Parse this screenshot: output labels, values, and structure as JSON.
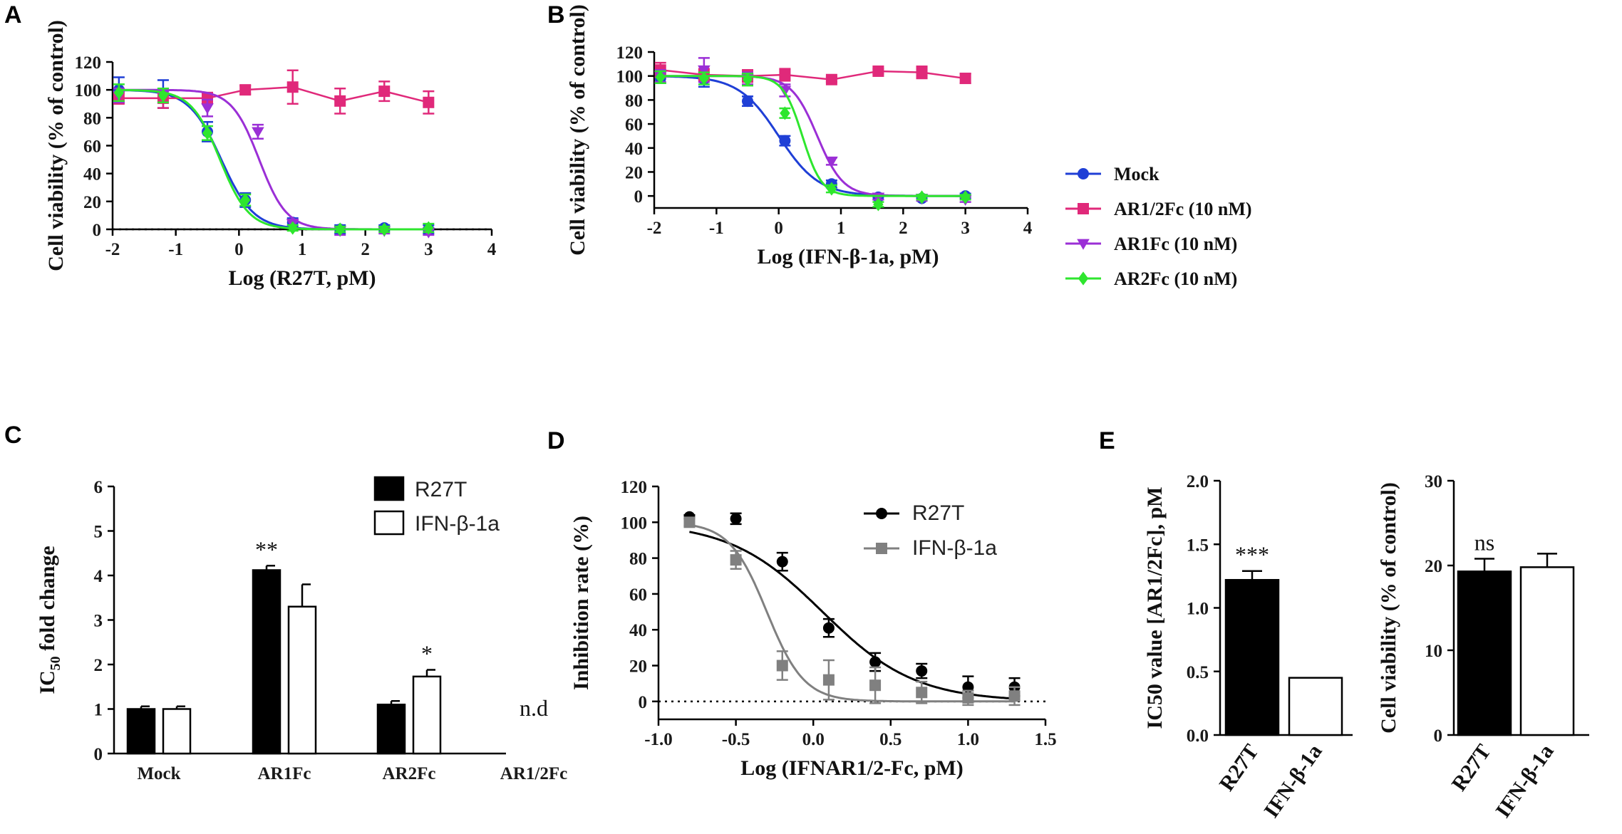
{
  "panels": {
    "A": "A",
    "B": "B",
    "C": "C",
    "D": "D",
    "E": "E"
  },
  "chart_data": [
    {
      "id": "A",
      "type": "scatter",
      "xlabel": "Log (R27T, pM)",
      "ylabel": "Cell viability (% of control)",
      "xlim": [
        -2,
        4
      ],
      "ylim": [
        0,
        120
      ],
      "xticks": [
        "-2",
        "-1",
        "0",
        "1",
        "2",
        "3",
        "4"
      ],
      "yticks": [
        "0",
        "20",
        "40",
        "60",
        "80",
        "100",
        "120"
      ],
      "zero_line": true,
      "series": [
        {
          "name": "Mock",
          "color": "#1f3fd6",
          "marker": "circle",
          "x": [
            -1.9,
            -1.2,
            -0.5,
            0.1,
            0.85,
            1.6,
            2.3,
            3.0
          ],
          "y": [
            100,
            97,
            70,
            21,
            5,
            0,
            1,
            0
          ],
          "err": [
            9,
            10,
            7,
            5,
            3,
            3,
            2,
            3
          ],
          "fit": {
            "top": 100,
            "bottom": 0,
            "ec50": -0.28,
            "hill": 1.7
          }
        },
        {
          "name": "AR1/2Fc (10 nM)",
          "color": "#e0297a",
          "marker": "square",
          "x": [
            -1.9,
            -1.2,
            -0.5,
            0.1,
            0.85,
            1.6,
            2.3,
            3.0
          ],
          "y": [
            94,
            94,
            94,
            100,
            102,
            92,
            99,
            91
          ],
          "err": [
            4,
            7,
            4,
            3,
            12,
            9,
            7,
            8
          ],
          "connect": true
        },
        {
          "name": "AR1Fc (10 nM)",
          "color": "#9b2fd6",
          "marker": "triangle",
          "x": [
            -1.9,
            -1.2,
            -0.5,
            0.3,
            0.85,
            1.6,
            2.3,
            3.0
          ],
          "y": [
            96,
            96,
            87,
            70,
            4,
            -1,
            -1,
            -2
          ],
          "err": [
            5,
            5,
            6,
            5,
            3,
            3,
            2,
            2
          ],
          "fit": {
            "top": 100,
            "bottom": 0,
            "ec50": 0.32,
            "hill": 2.0
          }
        },
        {
          "name": "AR2Fc (10 nM)",
          "color": "#2ee62e",
          "marker": "diamond",
          "x": [
            -1.9,
            -1.2,
            -0.5,
            0.1,
            0.85,
            1.6,
            2.3,
            3.0
          ],
          "y": [
            98,
            96,
            69,
            21,
            1,
            0,
            0,
            1
          ],
          "err": [
            6,
            5,
            5,
            4,
            2,
            2,
            2,
            3
          ],
          "fit": {
            "top": 100,
            "bottom": 0,
            "ec50": -0.3,
            "hill": 1.9
          }
        }
      ]
    },
    {
      "id": "B",
      "type": "scatter",
      "xlabel": "Log (IFN-β-1a, pM)",
      "ylabel": "Cell viability (% of control)",
      "xlim": [
        -2,
        4
      ],
      "ylim": [
        -10,
        120
      ],
      "xticks": [
        "-2",
        "-1",
        "0",
        "1",
        "2",
        "3",
        "4"
      ],
      "yticks": [
        "0",
        "20",
        "40",
        "60",
        "80",
        "100",
        "120"
      ],
      "legend": [
        "Mock",
        "AR1/2Fc (10 nM)",
        "AR1Fc (10 nM)",
        "AR2Fc (10 nM)"
      ],
      "series": [
        {
          "name": "Mock",
          "color": "#1f3fd6",
          "marker": "circle",
          "x": [
            -1.9,
            -1.2,
            -0.5,
            0.1,
            0.85,
            1.6,
            2.3,
            3.0
          ],
          "y": [
            98,
            97,
            79,
            46,
            10,
            -1,
            -2,
            0
          ],
          "err": [
            4,
            6,
            4,
            4,
            3,
            2,
            2,
            2
          ],
          "fit": {
            "top": 100,
            "bottom": 0,
            "ec50": 0.0,
            "hill": 1.35
          }
        },
        {
          "name": "AR1/2Fc (10 nM)",
          "color": "#e0297a",
          "marker": "square",
          "x": [
            -1.9,
            -1.2,
            -0.5,
            0.1,
            0.85,
            1.6,
            2.3,
            3.0
          ],
          "y": [
            105,
            101,
            100,
            101,
            97,
            104,
            103,
            98
          ],
          "err": [
            6,
            5,
            5,
            5,
            2,
            2,
            5,
            4
          ],
          "connect": true
        },
        {
          "name": "AR1Fc (10 nM)",
          "color": "#9b2fd6",
          "marker": "triangle",
          "x": [
            -1.9,
            -1.2,
            -0.5,
            0.1,
            0.85,
            1.6,
            2.3,
            3.0
          ],
          "y": [
            100,
            105,
            98,
            88,
            29,
            -1,
            -2,
            -3
          ],
          "err": [
            5,
            10,
            5,
            5,
            3,
            2,
            2,
            2
          ],
          "fit": {
            "top": 100,
            "bottom": 0,
            "ec50": 0.62,
            "hill": 2.1
          }
        },
        {
          "name": "AR2Fc (10 nM)",
          "color": "#2ee62e",
          "marker": "diamond",
          "x": [
            -1.9,
            -1.2,
            -0.5,
            0.1,
            0.85,
            1.6,
            2.3,
            3.0
          ],
          "y": [
            99,
            98,
            97,
            69,
            6,
            -7,
            -1,
            -1
          ],
          "err": [
            5,
            5,
            5,
            4,
            3,
            2,
            2,
            2
          ],
          "fit": {
            "top": 100,
            "bottom": 0,
            "ec50": 0.38,
            "hill": 2.8
          }
        }
      ]
    },
    {
      "id": "C",
      "type": "bar",
      "ylabel_main": "IC",
      "ylabel_sub": "50",
      "ylabel_rest": " fold change",
      "ylim": [
        0,
        6
      ],
      "yticks": [
        "0",
        "1",
        "2",
        "3",
        "4",
        "5",
        "6"
      ],
      "categories": [
        "Mock",
        "AR1Fc",
        "AR2Fc",
        "AR1/2Fc"
      ],
      "series": [
        {
          "name": "R27T",
          "fill": "#000000",
          "values": [
            1.0,
            4.12,
            1.1,
            null
          ],
          "err": [
            0.06,
            0.1,
            0.08,
            0
          ]
        },
        {
          "name": "IFN-β-1a",
          "fill": "#ffffff",
          "values": [
            1.0,
            3.3,
            1.73,
            null
          ],
          "err": [
            0.06,
            0.5,
            0.15,
            0
          ]
        }
      ],
      "annotations": [
        {
          "category": "AR1Fc",
          "series": 0,
          "text": "**"
        },
        {
          "category": "AR2Fc",
          "series": 1,
          "text": "*"
        },
        {
          "category": "AR1/2Fc",
          "series": -1,
          "text": "n.d"
        }
      ],
      "legend": [
        "R27T",
        "IFN-β-1a"
      ]
    },
    {
      "id": "D",
      "type": "scatter",
      "xlabel": "Log (IFNAR1/2-Fc, pM)",
      "ylabel": "Inhibition rate (%)",
      "xlim": [
        -1.0,
        1.5
      ],
      "ylim": [
        -10,
        120
      ],
      "xticks": [
        "-1.0",
        "-0.5",
        "0.0",
        "0.5",
        "1.0",
        "1.5"
      ],
      "yticks": [
        "0",
        "20",
        "40",
        "60",
        "80",
        "100",
        "120"
      ],
      "zero_line": true,
      "legend": [
        "R27T",
        "IFN-β-1a"
      ],
      "series": [
        {
          "name": "R27T",
          "color": "#000000",
          "marker": "circle",
          "x": [
            -0.8,
            -0.5,
            -0.2,
            0.1,
            0.4,
            0.7,
            1.0,
            1.3
          ],
          "y": [
            103,
            102,
            78,
            41,
            22,
            17,
            8,
            8
          ],
          "err": [
            1,
            3,
            5,
            5,
            5,
            4,
            6,
            5
          ],
          "fit": {
            "top": 100,
            "bottom": 0,
            "ec50": 0.06,
            "hill": 1.45
          }
        },
        {
          "name": "IFN-β-1a",
          "color": "#808080",
          "marker": "square",
          "x": [
            -0.8,
            -0.5,
            -0.2,
            0.1,
            0.4,
            0.7,
            1.0,
            1.3
          ],
          "y": [
            100,
            79,
            20,
            12,
            9,
            5,
            2,
            3
          ],
          "err": [
            2,
            5,
            8,
            11,
            10,
            6,
            4,
            5
          ],
          "fit": {
            "top": 100,
            "bottom": 0,
            "ec50": -0.3,
            "hill": 3.6
          }
        }
      ]
    },
    {
      "id": "E1",
      "type": "bar",
      "ylabel": "IC50 value [AR1/2Fc], pM",
      "ylim": [
        0,
        2.0
      ],
      "yticks": [
        "0.0",
        "0.5",
        "1.0",
        "1.5",
        "2.0"
      ],
      "categories": [
        "R27T",
        "IFN-β-1a"
      ],
      "values": [
        1.22,
        0.45
      ],
      "err": [
        0.07,
        0
      ],
      "fills": [
        "#000000",
        "#ffffff"
      ],
      "annotations": [
        {
          "index": 0,
          "text": "***"
        }
      ]
    },
    {
      "id": "E2",
      "type": "bar",
      "ylabel": "Cell viability (% of control)",
      "ylim": [
        0,
        30
      ],
      "yticks": [
        "0",
        "10",
        "20",
        "30"
      ],
      "categories": [
        "R27T",
        "IFN-β-1a"
      ],
      "values": [
        19.3,
        19.8
      ],
      "err": [
        1.5,
        1.6
      ],
      "fills": [
        "#000000",
        "#ffffff"
      ],
      "annotations": [
        {
          "index": 0,
          "text": "ns"
        }
      ]
    }
  ]
}
